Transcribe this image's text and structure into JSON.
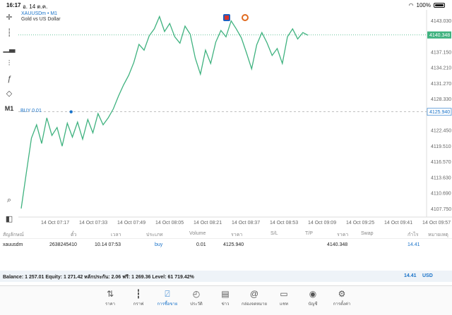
{
  "status": {
    "time": "16:17",
    "date": "อ. 14 ต.ค.",
    "battery": "100%"
  },
  "chart": {
    "symbol": "XAUUSDm • M1",
    "description": "Gold vs US Dollar",
    "buy_label": "BUY 0.01",
    "current_price": "4140.348",
    "buy_price": "4125.940",
    "timeframe": "M1",
    "up_color": "#3fb27f",
    "accent": "#1a73c9"
  },
  "chart_data": {
    "type": "line",
    "y_ticks": [
      "4143.030",
      "4140.348",
      "4137.150",
      "4134.210",
      "4131.270",
      "4128.330",
      "4125.940",
      "4122.450",
      "4119.510",
      "4116.570",
      "4113.630",
      "4110.690",
      "4107.750"
    ],
    "x_ticks": [
      "14 Oct 07:17",
      "14 Oct 07:33",
      "14 Oct 07:49",
      "14 Oct 08:05",
      "14 Oct 08:21",
      "14 Oct 08:37",
      "14 Oct 08:53",
      "14 Oct 09:09",
      "14 Oct 09:25",
      "14 Oct 09:41",
      "14 Oct 09:57"
    ],
    "ylim": [
      4106.2,
      4144.0
    ],
    "x": [
      0,
      2,
      4,
      6,
      8,
      10,
      12,
      14,
      16,
      18,
      20,
      22,
      24,
      26,
      28,
      30,
      32,
      34,
      36,
      38,
      40,
      42,
      44,
      46,
      48,
      50,
      52,
      54,
      56,
      58,
      60,
      62,
      64,
      66,
      68,
      70,
      72,
      74,
      76,
      78,
      80,
      82,
      84,
      86,
      88,
      90,
      92,
      94,
      96,
      98,
      100,
      102,
      104,
      106,
      108,
      110,
      112
    ],
    "values": [
      4107.8,
      4114.5,
      4121.0,
      4123.5,
      4120.0,
      4124.8,
      4121.5,
      4123.0,
      4119.5,
      4123.8,
      4121.2,
      4124.0,
      4120.8,
      4124.5,
      4122.0,
      4125.6,
      4123.5,
      4124.8,
      4126.5,
      4128.9,
      4131.0,
      4132.8,
      4135.2,
      4138.6,
      4137.5,
      4140.2,
      4141.5,
      4143.8,
      4141.0,
      4142.5,
      4140.0,
      4138.8,
      4142.0,
      4140.5,
      4136.0,
      4133.0,
      4137.5,
      4135.0,
      4139.0,
      4141.2,
      4140.0,
      4143.0,
      4141.5,
      4139.8,
      4137.0,
      4134.0,
      4138.5,
      4140.8,
      4138.9,
      4136.5,
      4137.8,
      4135.0,
      4140.0,
      4141.5,
      4139.6,
      4140.8,
      4140.3
    ],
    "buy_marker": {
      "x": 19.5,
      "y": 4125.94
    }
  },
  "toolbar": {
    "tools": [
      "crosshair-icon",
      "candles-icon",
      "bars-icon",
      "indicators-icon",
      "function-icon",
      "objects-icon"
    ],
    "m1": "M1"
  },
  "table": {
    "headers": [
      "สัญลักษณ์",
      "ตั๋ว",
      "เวลา",
      "ประเภท",
      "Volume",
      "ราคา",
      "S/L",
      "T/P",
      "ราคา",
      "Swap",
      "กำไร",
      "หมายเหตุ"
    ],
    "row": [
      "xauusdm",
      "2638245410",
      "10.14 07:53",
      "buy",
      "0.01",
      "4125.940",
      "",
      "",
      "4140.348",
      "",
      "14.41",
      ""
    ],
    "balance": "Balance: 1 257.01 Equity: 1 271.42 หลักประกัน: 2.06 ฟรี: 1 269.36 Level: 61 719.42%",
    "profit": "14.41",
    "currency": "USD"
  },
  "tabs": [
    {
      "label": "ราคา",
      "icon": "arrows-icon"
    },
    {
      "label": "กราฟ",
      "icon": "chart-icon"
    },
    {
      "label": "การซื้อขาย",
      "icon": "trade-icon",
      "active": true
    },
    {
      "label": "ประวัติ",
      "icon": "history-icon"
    },
    {
      "label": "ข่าว",
      "icon": "news-icon"
    },
    {
      "label": "กล่องจดหมาย",
      "icon": "mail-icon"
    },
    {
      "label": "แชท",
      "icon": "chat-icon"
    },
    {
      "label": "บัญชี",
      "icon": "account-icon"
    },
    {
      "label": "การตั้งค่า",
      "icon": "settings-icon"
    }
  ]
}
